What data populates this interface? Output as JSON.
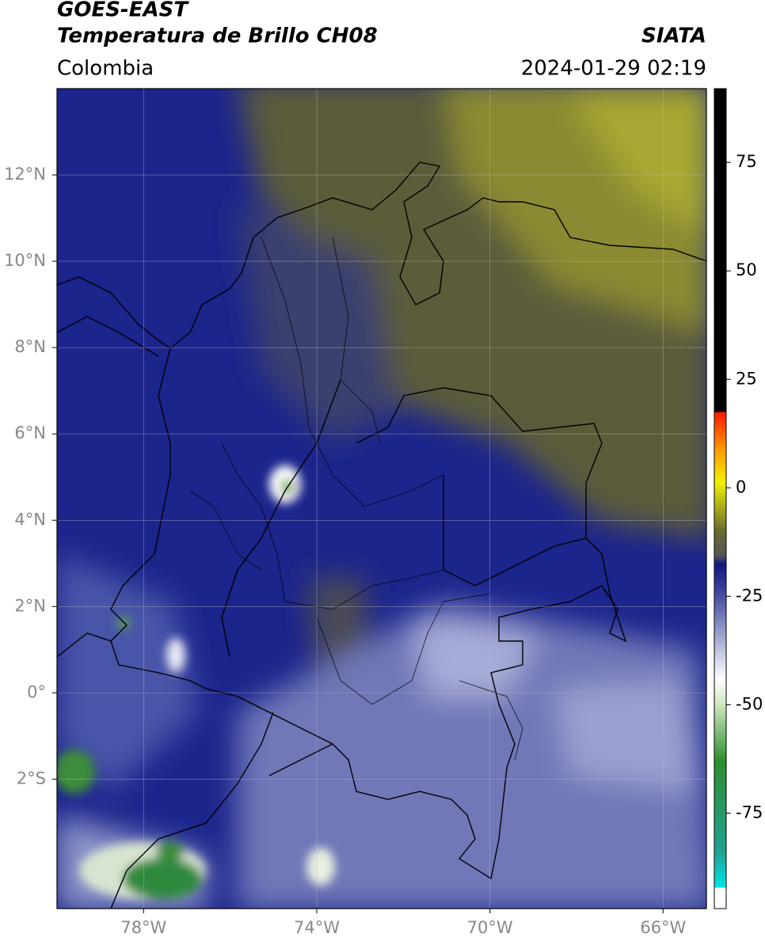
{
  "header": {
    "satellite": "GOES-EAST",
    "product": "Temperatura de Brillo CH08",
    "region": "Colombia",
    "source": "SIATA",
    "datetime": "2024-01-29 02:19"
  },
  "map": {
    "xlim": [
      -80,
      -65
    ],
    "ylim": [
      -5,
      14
    ],
    "xticks": [
      {
        "value": -78,
        "label": "78°W"
      },
      {
        "value": -74,
        "label": "74°W"
      },
      {
        "value": -70,
        "label": "70°W"
      },
      {
        "value": -66,
        "label": "66°W"
      }
    ],
    "yticks": [
      {
        "value": 12,
        "label": "12°N"
      },
      {
        "value": 10,
        "label": "10°N"
      },
      {
        "value": 8,
        "label": "8°N"
      },
      {
        "value": 6,
        "label": "6°N"
      },
      {
        "value": 4,
        "label": "4°N"
      },
      {
        "value": 2,
        "label": "2°N"
      },
      {
        "value": 0,
        "label": "0°"
      },
      {
        "value": -2,
        "label": "2°S"
      }
    ],
    "grid": true
  },
  "colorbar": {
    "lim": [
      -97,
      92
    ],
    "ticks": [
      75,
      50,
      25,
      0,
      -25,
      -50,
      -75
    ]
  }
}
